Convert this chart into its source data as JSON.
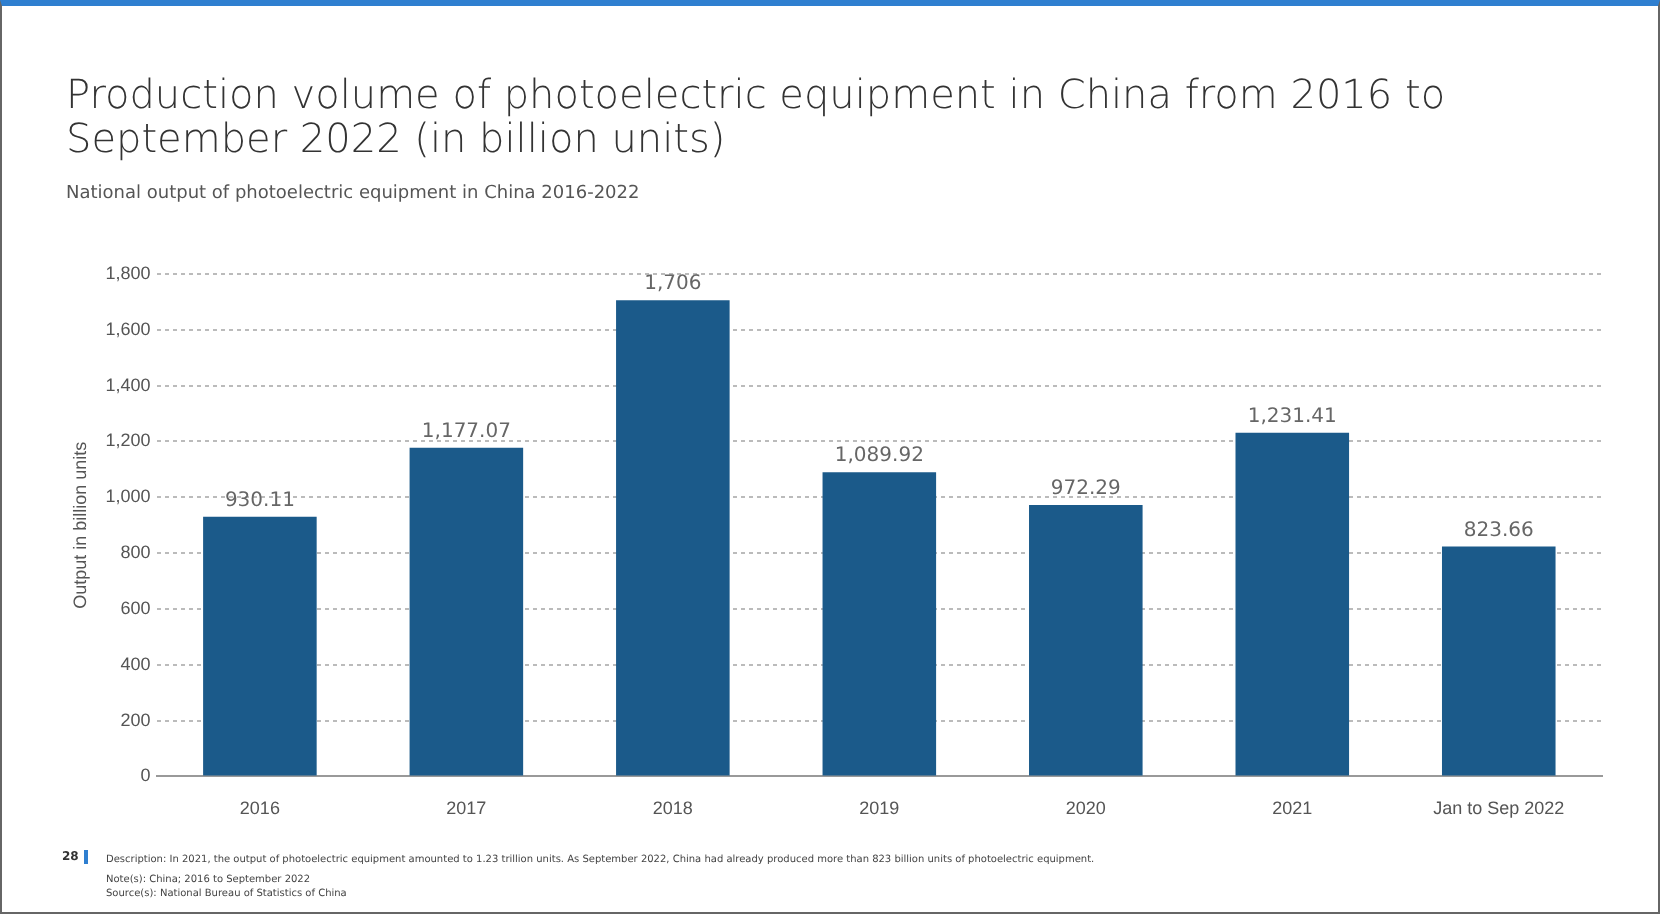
{
  "chart_data": {
    "type": "bar",
    "title": "Production volume of photoelectric equipment in China from 2016 to September 2022 (in billion units)",
    "subtitle": "National output of photoelectric equipment in China 2016-2022",
    "ylabel": "Output in billion units",
    "categories": [
      "2016",
      "2017",
      "2018",
      "2019",
      "2020",
      "2021",
      "Jan to Sep 2022"
    ],
    "values": [
      930.11,
      1177.07,
      1706,
      1089.92,
      972.29,
      1231.41,
      823.66
    ],
    "value_labels": [
      "930.11",
      "1,177.07",
      "1,706",
      "1,089.92",
      "972.29",
      "1,231.41",
      "823.66"
    ],
    "color": "#1b5a8a",
    "ylim": [
      0,
      1800
    ],
    "yticks": [
      {
        "value": 0,
        "label": "0"
      },
      {
        "value": 200,
        "label": "200"
      },
      {
        "value": 400,
        "label": "400"
      },
      {
        "value": 600,
        "label": "600"
      },
      {
        "value": 800,
        "label": "800"
      },
      {
        "value": 1000,
        "label": "1,000"
      },
      {
        "value": 1200,
        "label": "1,200"
      },
      {
        "value": 1400,
        "label": "1,400"
      },
      {
        "value": 1600,
        "label": "1,600"
      },
      {
        "value": 1800,
        "label": "1,800"
      }
    ],
    "grid": "y",
    "legend": false,
    "annotations": [
      "28",
      "Description: In 2021, the output of photoelectric equipment amounted to 1.23 trillion units. As September 2022, China had already produced more than 823 billion units of photoelectric equipment.",
      "Note(s): China; 2016 to September 2022",
      "Source(s): National Bureau of Statistics of China"
    ]
  }
}
